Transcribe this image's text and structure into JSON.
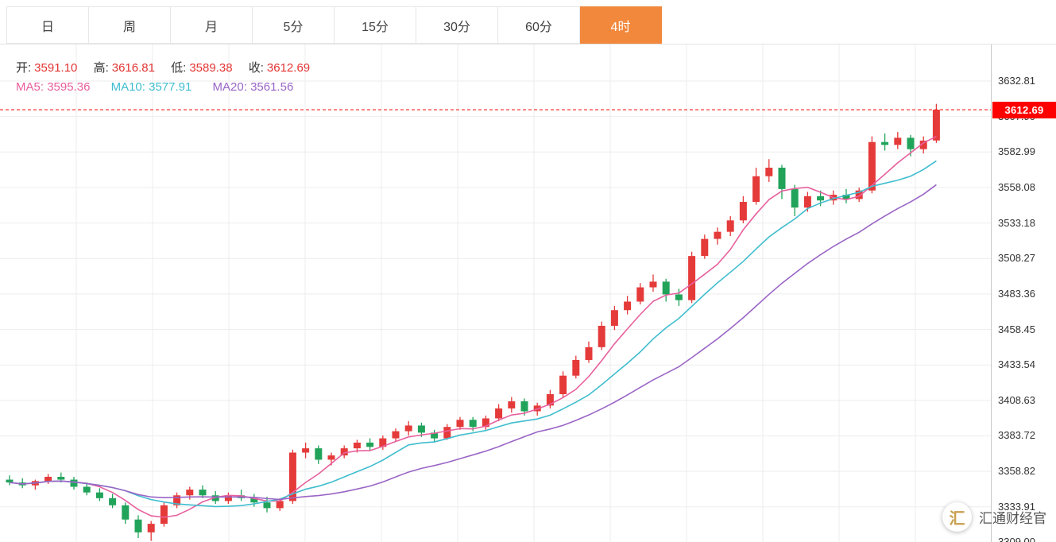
{
  "tabs": [
    {
      "label": "日",
      "active": false
    },
    {
      "label": "周",
      "active": false
    },
    {
      "label": "月",
      "active": false
    },
    {
      "label": "5分",
      "active": false
    },
    {
      "label": "15分",
      "active": false
    },
    {
      "label": "30分",
      "active": false
    },
    {
      "label": "60分",
      "active": false
    },
    {
      "label": "4时",
      "active": true
    }
  ],
  "info": {
    "open_label": "开:",
    "open": "3591.10",
    "high_label": "高:",
    "high": "3616.81",
    "low_label": "低:",
    "low": "3589.38",
    "close_label": "收:",
    "close": "3612.69",
    "ma5_label": "MA5:",
    "ma5": "3595.36",
    "ma10_label": "MA10:",
    "ma10": "3577.91",
    "ma20_label": "MA20:",
    "ma20": "3561.56"
  },
  "price_tag": "3612.69",
  "watermark": {
    "logo_char": "汇",
    "text": "汇通财经官"
  },
  "colors": {
    "up": "#e53a3a",
    "down": "#21a35a",
    "ma5": "#e7609e",
    "ma10": "#3fbdcf",
    "ma20": "#9a65c6",
    "active_tab": "#f1883c",
    "current_price_line": "#ff2222",
    "price_tag_bg": "#fe0000"
  },
  "chart_data": {
    "type": "candlestick",
    "title": "",
    "current_price": 3612.69,
    "y_axis_max": 3632.81,
    "y_step": 24.91,
    "y_axis_labels": [
      "3632.81",
      "3607.90",
      "3582.99",
      "3558.08",
      "3533.18",
      "3508.27",
      "3483.36",
      "3458.45",
      "3433.54",
      "3408.63",
      "3383.72",
      "3358.82",
      "3333.91",
      "3309.00"
    ],
    "grid": true,
    "up_color": "#e53a3a",
    "down_color": "#21a35a",
    "ma": [
      {
        "name": "MA5",
        "period": 5,
        "color": "#e7609e",
        "value": 3595.36
      },
      {
        "name": "MA10",
        "period": 10,
        "color": "#3fbdcf",
        "value": 3577.91
      },
      {
        "name": "MA20",
        "period": 20,
        "color": "#9a65c6",
        "value": 3561.56
      }
    ],
    "ohlc": [
      [
        3353,
        3356,
        3349,
        3351
      ],
      [
        3351,
        3354,
        3347,
        3349
      ],
      [
        3349,
        3353,
        3346,
        3352
      ],
      [
        3352,
        3357,
        3350,
        3355
      ],
      [
        3355,
        3358,
        3351,
        3353
      ],
      [
        3353,
        3355,
        3346,
        3348
      ],
      [
        3348,
        3351,
        3342,
        3344
      ],
      [
        3344,
        3347,
        3338,
        3340
      ],
      [
        3340,
        3343,
        3333,
        3335
      ],
      [
        3335,
        3337,
        3322,
        3325
      ],
      [
        3325,
        3328,
        3312,
        3316
      ],
      [
        3316,
        3324,
        3310,
        3322
      ],
      [
        3322,
        3337,
        3320,
        3335
      ],
      [
        3335,
        3344,
        3333,
        3342
      ],
      [
        3342,
        3348,
        3339,
        3346
      ],
      [
        3346,
        3349,
        3340,
        3342
      ],
      [
        3342,
        3345,
        3336,
        3338
      ],
      [
        3338,
        3344,
        3336,
        3342
      ],
      [
        3342,
        3346,
        3338,
        3340
      ],
      [
        3340,
        3343,
        3334,
        3337
      ],
      [
        3337,
        3341,
        3330,
        3333
      ],
      [
        3333,
        3340,
        3331,
        3338
      ],
      [
        3338,
        3374,
        3336,
        3372
      ],
      [
        3372,
        3379,
        3368,
        3375
      ],
      [
        3375,
        3377,
        3364,
        3367
      ],
      [
        3367,
        3372,
        3363,
        3370
      ],
      [
        3370,
        3377,
        3368,
        3375
      ],
      [
        3375,
        3381,
        3372,
        3379
      ],
      [
        3379,
        3382,
        3373,
        3376
      ],
      [
        3376,
        3384,
        3374,
        3382
      ],
      [
        3382,
        3389,
        3380,
        3387
      ],
      [
        3387,
        3394,
        3384,
        3391
      ],
      [
        3391,
        3393,
        3383,
        3386
      ],
      [
        3386,
        3388,
        3379,
        3382
      ],
      [
        3382,
        3392,
        3381,
        3390
      ],
      [
        3390,
        3397,
        3388,
        3395
      ],
      [
        3395,
        3397,
        3387,
        3390
      ],
      [
        3390,
        3398,
        3388,
        3396
      ],
      [
        3396,
        3406,
        3394,
        3403
      ],
      [
        3403,
        3411,
        3400,
        3408
      ],
      [
        3408,
        3410,
        3398,
        3401
      ],
      [
        3401,
        3407,
        3398,
        3405
      ],
      [
        3405,
        3416,
        3403,
        3413
      ],
      [
        3413,
        3429,
        3411,
        3426
      ],
      [
        3426,
        3440,
        3424,
        3437
      ],
      [
        3437,
        3450,
        3435,
        3446
      ],
      [
        3446,
        3464,
        3444,
        3461
      ],
      [
        3461,
        3475,
        3458,
        3472
      ],
      [
        3472,
        3482,
        3469,
        3478
      ],
      [
        3478,
        3491,
        3476,
        3488
      ],
      [
        3488,
        3497,
        3485,
        3492
      ],
      [
        3492,
        3494,
        3478,
        3483
      ],
      [
        3483,
        3487,
        3475,
        3479
      ],
      [
        3479,
        3513,
        3477,
        3510
      ],
      [
        3510,
        3525,
        3508,
        3522
      ],
      [
        3522,
        3530,
        3518,
        3527
      ],
      [
        3527,
        3538,
        3524,
        3535
      ],
      [
        3535,
        3552,
        3533,
        3548
      ],
      [
        3548,
        3572,
        3546,
        3566
      ],
      [
        3566,
        3578,
        3562,
        3572
      ],
      [
        3572,
        3574,
        3550,
        3557
      ],
      [
        3557,
        3560,
        3538,
        3544
      ],
      [
        3544,
        3555,
        3541,
        3552
      ],
      [
        3552,
        3556,
        3545,
        3549
      ],
      [
        3549,
        3556,
        3546,
        3553
      ],
      [
        3553,
        3557,
        3547,
        3550
      ],
      [
        3550,
        3558,
        3548,
        3556
      ],
      [
        3556,
        3594,
        3554,
        3590
      ],
      [
        3590,
        3596,
        3584,
        3588
      ],
      [
        3588,
        3597,
        3585,
        3593
      ],
      [
        3593,
        3595,
        3580,
        3585
      ],
      [
        3585,
        3594,
        3582,
        3591
      ],
      [
        3591.1,
        3616.81,
        3589.38,
        3612.69
      ]
    ]
  }
}
